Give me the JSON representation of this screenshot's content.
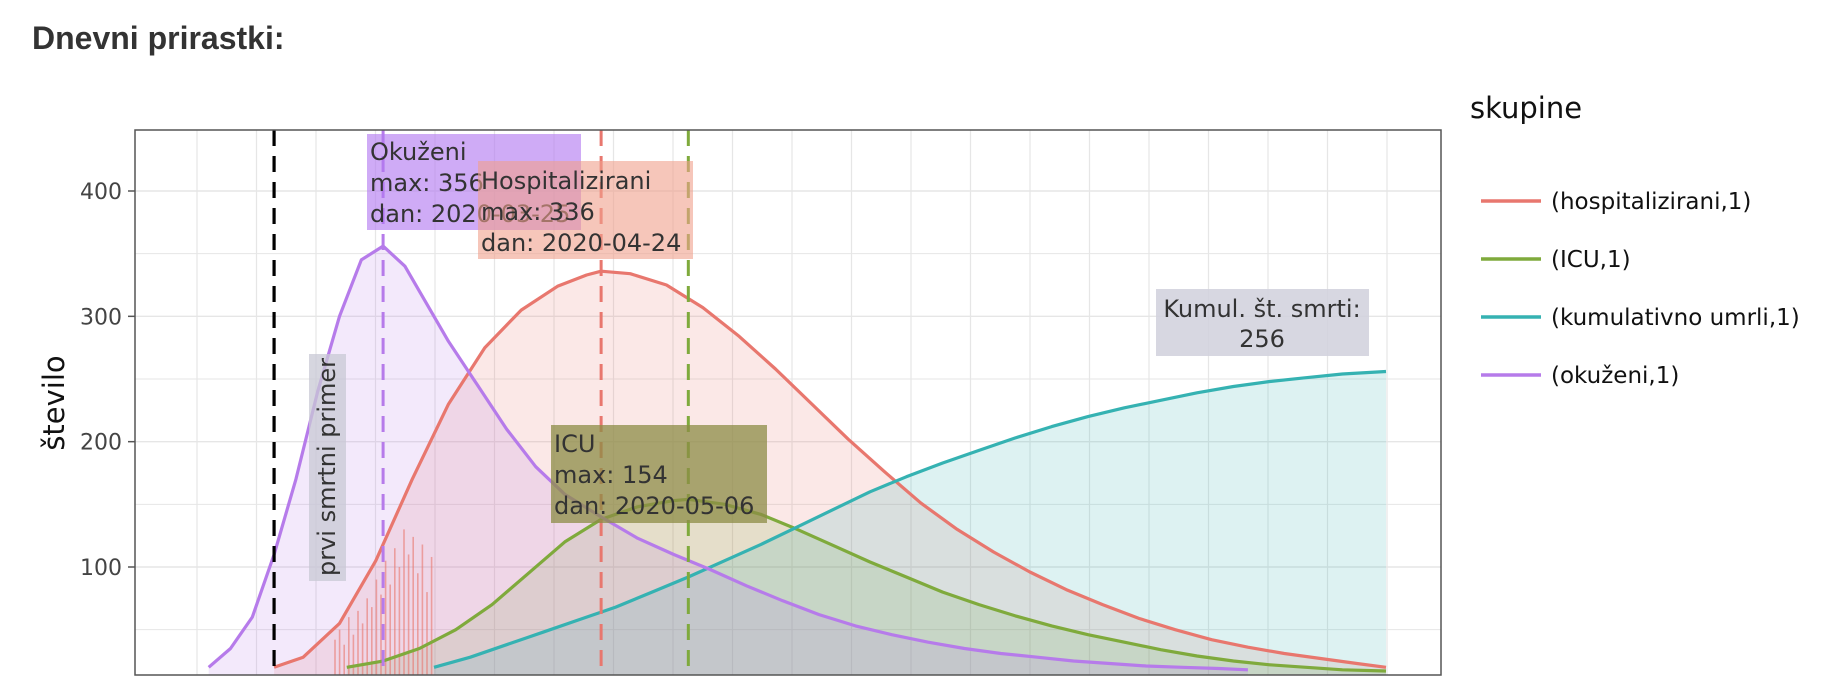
{
  "heading": "Dnevni prirastki:",
  "chart_data": {
    "type": "area",
    "ylabel": "število",
    "xlabel": "",
    "ylim": [
      20,
      450
    ],
    "yticks": [
      100,
      200,
      300,
      400
    ],
    "xlim": [
      "2020-02-20",
      "2020-08-10"
    ],
    "grid": true,
    "legend": {
      "title": "skupine",
      "placement": "right",
      "entries": [
        "(hospitalizirani,1)",
        "(ICU,1)",
        "(kumulativno umrli,1)",
        "(okuženi,1)"
      ]
    },
    "series": [
      {
        "name": "(hospitalizirani,1)",
        "color": "#E8776E",
        "x": [
          "2020-03-10",
          "2020-03-14",
          "2020-03-19",
          "2020-03-24",
          "2020-03-29",
          "2020-04-03",
          "2020-04-08",
          "2020-04-13",
          "2020-04-18",
          "2020-04-22",
          "2020-04-24",
          "2020-04-28",
          "2020-05-03",
          "2020-05-08",
          "2020-05-13",
          "2020-05-18",
          "2020-05-23",
          "2020-05-28",
          "2020-06-02",
          "2020-06-07",
          "2020-06-12",
          "2020-06-17",
          "2020-06-22",
          "2020-06-27",
          "2020-07-02",
          "2020-07-07",
          "2020-07-12",
          "2020-07-17",
          "2020-07-22",
          "2020-07-27",
          "2020-08-01",
          "2020-08-06",
          "2020-08-10"
        ],
        "y": [
          20,
          28,
          55,
          105,
          170,
          230,
          275,
          305,
          324,
          333,
          336,
          334,
          325,
          307,
          284,
          258,
          230,
          202,
          176,
          151,
          130,
          112,
          96,
          82,
          70,
          59,
          50,
          42,
          36,
          31,
          27,
          23,
          20
        ]
      },
      {
        "name": "(ICU,1)",
        "color": "#7FAA3C",
        "x": [
          "2020-03-20",
          "2020-03-25",
          "2020-03-30",
          "2020-04-04",
          "2020-04-09",
          "2020-04-14",
          "2020-04-19",
          "2020-04-24",
          "2020-04-29",
          "2020-05-04",
          "2020-05-06",
          "2020-05-11",
          "2020-05-16",
          "2020-05-21",
          "2020-05-26",
          "2020-05-31",
          "2020-06-05",
          "2020-06-10",
          "2020-06-15",
          "2020-06-20",
          "2020-06-25",
          "2020-06-30",
          "2020-07-05",
          "2020-07-10",
          "2020-07-15",
          "2020-07-20",
          "2020-07-25",
          "2020-07-30",
          "2020-08-04",
          "2020-08-10"
        ],
        "y": [
          20,
          25,
          35,
          50,
          70,
          95,
          120,
          138,
          148,
          153,
          154,
          150,
          142,
          130,
          117,
          104,
          92,
          80,
          70,
          61,
          53,
          46,
          40,
          34,
          29,
          25,
          22,
          20,
          18,
          17
        ]
      },
      {
        "name": "(kumulativno umrli,1)",
        "color": "#35B2B2",
        "x": [
          "2020-04-01",
          "2020-04-06",
          "2020-04-11",
          "2020-04-16",
          "2020-04-21",
          "2020-04-26",
          "2020-05-01",
          "2020-05-06",
          "2020-05-11",
          "2020-05-16",
          "2020-05-21",
          "2020-05-26",
          "2020-05-31",
          "2020-06-05",
          "2020-06-10",
          "2020-06-15",
          "2020-06-20",
          "2020-06-25",
          "2020-06-30",
          "2020-07-05",
          "2020-07-10",
          "2020-07-15",
          "2020-07-20",
          "2020-07-25",
          "2020-07-30",
          "2020-08-04",
          "2020-08-10"
        ],
        "y": [
          20,
          28,
          38,
          48,
          58,
          68,
          80,
          92,
          105,
          118,
          132,
          146,
          160,
          172,
          183,
          193,
          203,
          212,
          220,
          227,
          233,
          239,
          244,
          248,
          251,
          254,
          256
        ]
      },
      {
        "name": "(okuženi,1)",
        "color": "#B67BEA",
        "x": [
          "2020-03-01",
          "2020-03-04",
          "2020-03-07",
          "2020-03-10",
          "2020-03-13",
          "2020-03-16",
          "2020-03-19",
          "2020-03-22",
          "2020-03-25",
          "2020-03-28",
          "2020-03-31",
          "2020-04-03",
          "2020-04-07",
          "2020-04-11",
          "2020-04-15",
          "2020-04-19",
          "2020-04-24",
          "2020-04-29",
          "2020-05-04",
          "2020-05-09",
          "2020-05-14",
          "2020-05-19",
          "2020-05-24",
          "2020-05-29",
          "2020-06-03",
          "2020-06-08",
          "2020-06-13",
          "2020-06-18",
          "2020-06-23",
          "2020-06-28",
          "2020-07-03",
          "2020-07-08",
          "2020-07-13",
          "2020-07-18",
          "2020-07-22"
        ],
        "y": [
          20,
          35,
          60,
          110,
          170,
          240,
          300,
          345,
          356,
          340,
          310,
          280,
          245,
          210,
          180,
          158,
          140,
          123,
          110,
          98,
          85,
          73,
          62,
          53,
          46,
          40,
          35,
          31,
          28,
          25,
          23,
          21,
          20,
          19,
          18
        ]
      }
    ],
    "vlines": [
      {
        "x": "2020-03-10",
        "color": "#000000",
        "label": "prvi smrtni primer"
      },
      {
        "x": "2020-03-25",
        "color": "#B67BEA"
      },
      {
        "x": "2020-04-24",
        "color": "#E8776E"
      },
      {
        "x": "2020-05-06",
        "color": "#7FAA3C"
      }
    ],
    "annotations": [
      {
        "key": "okuzeni",
        "lines": [
          "Okuženi",
          "max: 356",
          "dan: 2020-03-25"
        ],
        "color": "#B67BEA"
      },
      {
        "key": "hosp",
        "lines": [
          "Hospitalizirani",
          "max: 336",
          "dan: 2020-04-24"
        ],
        "color": "#E8776E"
      },
      {
        "key": "icu",
        "lines": [
          "ICU",
          "max: 154",
          "dan: 2020-05-06"
        ],
        "color": "#7FAA3C"
      },
      {
        "key": "smrti",
        "lines": [
          "Kumul. št. smrti:",
          "256"
        ],
        "color": "#D0D0DC"
      }
    ],
    "daily_bars_note": ""
  }
}
